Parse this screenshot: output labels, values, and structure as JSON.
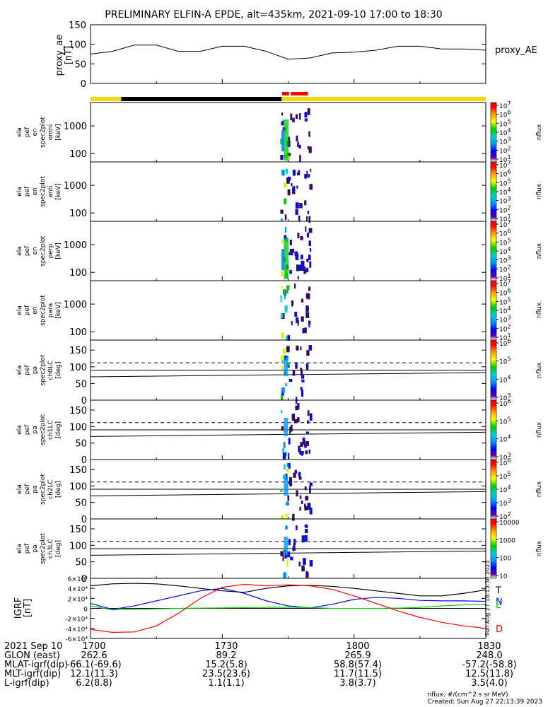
{
  "title": "PRELIMINARY ELFIN-A EPDE, alt=435km, 2021-09-10 17:00 to 18:30",
  "chart_data": [
    {
      "type": "line",
      "panel": "proxy_ae",
      "ylabel_lines": [
        "proxy_ae",
        "[nT]"
      ],
      "legend": "proxy_AE",
      "ylim": [
        0,
        150
      ],
      "yticks": [
        "0",
        "50",
        "100",
        "150"
      ],
      "x_minutes": [
        0,
        5,
        10,
        15,
        20,
        25,
        30,
        35,
        40,
        45,
        50,
        55,
        60,
        65,
        70,
        75,
        80,
        85,
        90
      ],
      "values": [
        75,
        82,
        98,
        98,
        82,
        82,
        95,
        95,
        82,
        62,
        65,
        78,
        80,
        85,
        95,
        95,
        88,
        88,
        85
      ]
    },
    {
      "type": "heatmap",
      "panel": "en omni",
      "ylabel_lines": [
        "ela",
        "pef",
        "en",
        "spec2plot",
        "omni",
        "[keV]"
      ],
      "ylog": true,
      "yticks": [
        "100",
        "1000"
      ],
      "colorbar": {
        "label": "nflux",
        "ticks": [
          "10",
          "10",
          "10",
          "10",
          "10",
          "10",
          "10"
        ],
        "exps": [
          "1",
          "2",
          "3",
          "4",
          "5",
          "6",
          "7"
        ]
      }
    },
    {
      "type": "heatmap",
      "panel": "en anti",
      "ylabel_lines": [
        "ela",
        "pef",
        "en",
        "spec2plot",
        "anti",
        "[keV]"
      ],
      "ylog": true,
      "yticks": [
        "100",
        "1000"
      ],
      "colorbar": {
        "label": "nflux",
        "ticks": [
          "10",
          "10",
          "10",
          "10",
          "10",
          "10",
          "10"
        ],
        "exps": [
          "1",
          "2",
          "3",
          "4",
          "5",
          "6",
          "7"
        ]
      }
    },
    {
      "type": "heatmap",
      "panel": "en perp",
      "ylabel_lines": [
        "ela",
        "pef",
        "en",
        "spec2plot",
        "perp",
        "[keV]"
      ],
      "ylog": true,
      "yticks": [
        "100",
        "1000"
      ],
      "colorbar": {
        "label": "nflux",
        "ticks": [
          "10",
          "10",
          "10",
          "10",
          "10",
          "10",
          "10"
        ],
        "exps": [
          "1",
          "2",
          "3",
          "4",
          "5",
          "6",
          "7"
        ]
      }
    },
    {
      "type": "heatmap",
      "panel": "en para",
      "ylabel_lines": [
        "ela",
        "pef",
        "en",
        "spec2plot",
        "para",
        "[keV]"
      ],
      "ylog": true,
      "yticks": [
        "100",
        "1000"
      ],
      "colorbar": {
        "label": "nflux",
        "ticks": [
          "10",
          "10",
          "10",
          "10",
          "10",
          "10",
          "10"
        ],
        "exps": [
          "1",
          "2",
          "3",
          "4",
          "5",
          "6",
          "7"
        ]
      }
    },
    {
      "type": "heatmap",
      "panel": "pa ch0LC",
      "ylabel_lines": [
        "ela",
        "pef",
        "pa",
        "spec2plot",
        "ch0LC",
        "[deg]"
      ],
      "ylim": [
        0,
        180
      ],
      "yticks": [
        "0",
        "50",
        "100",
        "150"
      ],
      "colorbar": {
        "label": "nflux",
        "ticks": [
          "10",
          "10",
          "10",
          "10"
        ],
        "exps": [
          "3",
          "4",
          "5",
          "6"
        ]
      }
    },
    {
      "type": "heatmap",
      "panel": "pa ch1LC",
      "ylabel_lines": [
        "ela",
        "pef",
        "pa",
        "spec2plot",
        "ch1LC",
        "[deg]"
      ],
      "ylim": [
        0,
        180
      ],
      "yticks": [
        "0",
        "50",
        "100",
        "150"
      ],
      "colorbar": {
        "label": "nflux",
        "ticks": [
          "10",
          "10",
          "10",
          "10"
        ],
        "exps": [
          "3",
          "4",
          "5",
          "6"
        ]
      }
    },
    {
      "type": "heatmap",
      "panel": "pa ch2LC",
      "ylabel_lines": [
        "ela",
        "pef",
        "pa",
        "spec2plot",
        "ch2LC",
        "[deg]"
      ],
      "ylim": [
        0,
        180
      ],
      "yticks": [
        "0",
        "50",
        "100",
        "150"
      ],
      "colorbar": {
        "label": "nflux",
        "ticks": [
          "10",
          "10",
          "10",
          "10",
          "10"
        ],
        "exps": [
          "2",
          "3",
          "4",
          "5",
          "6"
        ]
      }
    },
    {
      "type": "heatmap",
      "panel": "pa ch3LC",
      "ylabel_lines": [
        "ela",
        "pef",
        "pa",
        "spec2plot",
        "ch3LC",
        "[deg]"
      ],
      "ylim": [
        0,
        180
      ],
      "yticks": [
        "0",
        "50",
        "100",
        "150"
      ],
      "colorbar": {
        "label": "nflux",
        "ticks": [
          "10",
          "100",
          "1000",
          "10000"
        ],
        "exps": [
          "",
          "",
          "",
          ""
        ]
      }
    },
    {
      "type": "line",
      "panel": "IGRF",
      "ylabel_lines": [
        "IGRF",
        "[nT]"
      ],
      "yticks": [
        "-6×10⁴",
        "-4×10⁴",
        "-2×10⁴",
        "0",
        "2×10⁴",
        "4×10⁴",
        "6×10⁴"
      ],
      "ylim": [
        -60000,
        60000
      ],
      "x_minutes": [
        0,
        5,
        10,
        15,
        20,
        25,
        30,
        35,
        40,
        45,
        50,
        55,
        60,
        65,
        70,
        75,
        80,
        85,
        90
      ],
      "series": [
        {
          "name": "T",
          "color": "#000000",
          "values": [
            45000,
            49000,
            50000,
            49000,
            45000,
            40000,
            35000,
            32000,
            40000,
            45000,
            46000,
            44000,
            40000,
            35000,
            30000,
            25000,
            25000,
            30000,
            37000
          ]
        },
        {
          "name": "N",
          "color": "#0000ff",
          "values": [
            10000,
            -2000,
            5000,
            15000,
            25000,
            35000,
            40000,
            30000,
            15000,
            5000,
            1000,
            8000,
            18000,
            22000,
            20000,
            16000,
            15000,
            15000,
            14000
          ]
        },
        {
          "name": "E",
          "color": "#00c800",
          "values": [
            5000,
            -3000,
            -2000,
            -1000,
            0,
            500,
            1000,
            1500,
            2000,
            2500,
            1500,
            0,
            0,
            0,
            500,
            2000,
            5000,
            7000,
            8000
          ]
        },
        {
          "name": "D",
          "color": "#ff0000",
          "values": [
            -42000,
            -48000,
            -47000,
            -35000,
            -10000,
            20000,
            42000,
            48000,
            45000,
            47000,
            45000,
            38000,
            25000,
            10000,
            -5000,
            -18000,
            -28000,
            -35000,
            -40000
          ]
        }
      ]
    }
  ],
  "xaxis": {
    "row_label": "2021 Sep 10",
    "ticks": [
      "1700",
      "1730",
      "1800",
      "1830"
    ]
  },
  "footer": [
    {
      "label": "GLON (east)",
      "values": [
        "262.6",
        "89.2",
        "265.9",
        "248.0"
      ]
    },
    {
      "label": "MLAT-igrf(dip)",
      "values": [
        "-66.1(-69.6)",
        "15.2(5.8)",
        "58.8(57.4)",
        "-57.2(-58.8)"
      ]
    },
    {
      "label": "MLT-igrf(dip)",
      "values": [
        "12.1(11.3)",
        "23.5(23.6)",
        "11.7(11.5)",
        "12.5(11.8)"
      ]
    },
    {
      "label": "L-igrf(dip)",
      "values": [
        "6.2(8.8)",
        "1.1(1.1)",
        "3.8(3.7)",
        "3.5(4.0)"
      ]
    }
  ],
  "units_note": "nflux: #/(cm^2 s sr MeV)",
  "created": "Created: Sun Aug 27 22:13:39 2023",
  "side_stamp": "Sun Aug 27 18:13:38 2023"
}
